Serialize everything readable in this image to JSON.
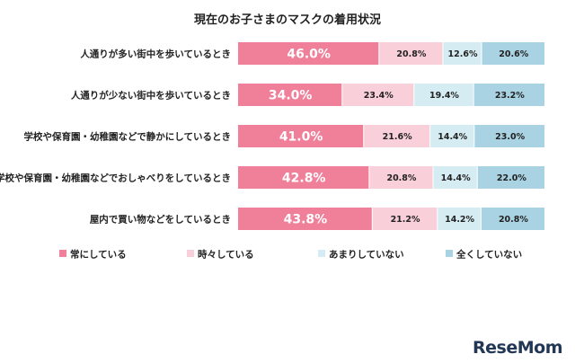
{
  "chart_data": {
    "type": "bar",
    "orientation": "horizontal",
    "stacked": "percent",
    "title": "現在のお子さまのマスクの着用状況",
    "categories": [
      "人通りが多い街中を歩いているとき",
      "人通りが少ない街中を歩いているとき",
      "学校や保育園・幼稚園などで静かにしているとき",
      "学校や保育園・幼稚園などでおしゃべりをしているとき",
      "屋内で買い物などをしているとき"
    ],
    "series": [
      {
        "name": "常にしている",
        "color": "#f0809a",
        "values": [
          46.0,
          34.0,
          41.0,
          42.8,
          43.8
        ],
        "labels": [
          "46.0%",
          "34.0%",
          "41.0%",
          "42.8%",
          "43.8%"
        ]
      },
      {
        "name": "時々している",
        "color": "#f9cfd9",
        "values": [
          20.8,
          23.4,
          21.6,
          20.8,
          21.2
        ],
        "labels": [
          "20.8%",
          "23.4%",
          "21.6%",
          "20.8%",
          "21.2%"
        ]
      },
      {
        "name": "あまりしていない",
        "color": "#d6ecf3",
        "values": [
          12.6,
          19.4,
          14.4,
          14.4,
          14.2
        ],
        "labels": [
          "12.6%",
          "19.4%",
          "14.4%",
          "14.4%",
          "14.2%"
        ]
      },
      {
        "name": "全くしていない",
        "color": "#a9d3e3",
        "values": [
          20.6,
          23.2,
          23.0,
          22.0,
          20.8
        ],
        "labels": [
          "20.6%",
          "23.2%",
          "23.0%",
          "22.0%",
          "20.8%"
        ]
      }
    ],
    "xlim": [
      0,
      100
    ],
    "grid": false,
    "legend_position": "bottom"
  },
  "watermark": {
    "text": "ReseMom",
    "color": "#223655"
  }
}
